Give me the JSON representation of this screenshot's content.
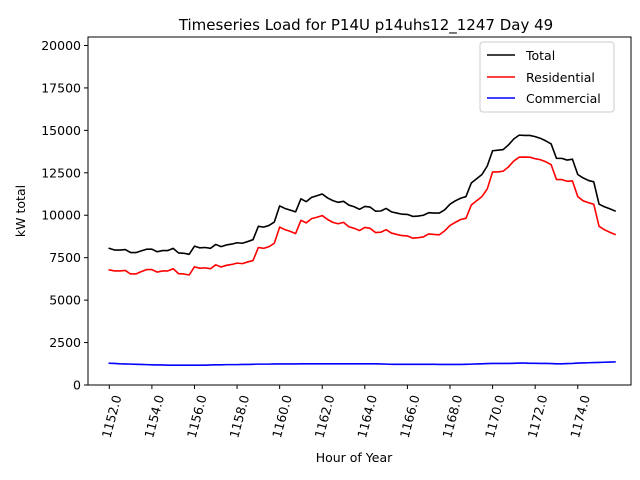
{
  "chart_data": {
    "type": "line",
    "title": "Timeseries Load for P14U p14uhs12_1247  Day 49",
    "xlabel": "Hour of Year",
    "ylabel": "kW total",
    "xlim": [
      1151.0,
      1176.5
    ],
    "ylim": [
      0,
      20500
    ],
    "xticks": [
      1152,
      1154,
      1156,
      1158,
      1160,
      1162,
      1164,
      1166,
      1168,
      1170,
      1172,
      1174
    ],
    "xtick_labels": [
      "1152.0",
      "1154.0",
      "1156.0",
      "1158.0",
      "1160.0",
      "1162.0",
      "1164.0",
      "1166.0",
      "1168.0",
      "1170.0",
      "1172.0",
      "1174.0"
    ],
    "yticks": [
      0,
      2500,
      5000,
      7500,
      10000,
      12500,
      15000,
      17500,
      20000
    ],
    "ytick_labels": [
      "0",
      "2500",
      "5000",
      "7500",
      "10000",
      "12500",
      "15000",
      "17500",
      "20000"
    ],
    "legend_position": "top-right",
    "x_start": 1152.0,
    "x_step": 0.25,
    "series": [
      {
        "name": "Total",
        "color": "#000000",
        "values": [
          8050,
          7950,
          7950,
          7980,
          7800,
          7800,
          7900,
          8000,
          8000,
          7850,
          7920,
          7920,
          8050,
          7780,
          7760,
          7700,
          8180,
          8080,
          8100,
          8050,
          8280,
          8150,
          8250,
          8300,
          8380,
          8350,
          8450,
          8560,
          9350,
          9300,
          9400,
          9600,
          10550,
          10400,
          10300,
          10200,
          10970,
          10800,
          11050,
          11150,
          11250,
          11020,
          10860,
          10760,
          10820,
          10600,
          10500,
          10350,
          10520,
          10480,
          10240,
          10250,
          10400,
          10200,
          10130,
          10060,
          10050,
          9930,
          9950,
          10000,
          10150,
          10130,
          10130,
          10320,
          10650,
          10850,
          11000,
          11100,
          11900,
          12150,
          12400,
          12900,
          13800,
          13830,
          13870,
          14150,
          14500,
          14720,
          14700,
          14700,
          14630,
          14530,
          14380,
          14200,
          13350,
          13350,
          13250,
          13300,
          12400,
          12200,
          12050,
          11970,
          10650,
          10500,
          10380,
          10250
        ]
      },
      {
        "name": "Residential",
        "color": "#ff0000",
        "values": [
          6780,
          6720,
          6720,
          6750,
          6540,
          6540,
          6680,
          6800,
          6800,
          6650,
          6720,
          6720,
          6850,
          6560,
          6540,
          6480,
          6960,
          6880,
          6900,
          6850,
          7080,
          6950,
          7050,
          7100,
          7180,
          7150,
          7250,
          7330,
          8100,
          8050,
          8150,
          8350,
          9300,
          9150,
          9050,
          8920,
          9700,
          9550,
          9800,
          9880,
          9980,
          9750,
          9580,
          9500,
          9580,
          9320,
          9230,
          9100,
          9280,
          9230,
          8980,
          9000,
          9150,
          8950,
          8870,
          8800,
          8780,
          8650,
          8680,
          8720,
          8900,
          8870,
          8850,
          9080,
          9400,
          9580,
          9750,
          9820,
          10600,
          10850,
          11100,
          11550,
          12550,
          12550,
          12600,
          12850,
          13200,
          13420,
          13430,
          13420,
          13330,
          13270,
          13150,
          12980,
          12100,
          12100,
          12000,
          12020,
          11100,
          10850,
          10740,
          10650,
          9350,
          9150,
          9000,
          8870
        ]
      },
      {
        "name": "Commercial",
        "color": "#0000ff",
        "values": [
          1280,
          1270,
          1250,
          1240,
          1230,
          1220,
          1210,
          1200,
          1190,
          1180,
          1180,
          1170,
          1170,
          1170,
          1170,
          1170,
          1170,
          1170,
          1170,
          1180,
          1190,
          1190,
          1200,
          1200,
          1200,
          1210,
          1210,
          1220,
          1230,
          1230,
          1230,
          1240,
          1240,
          1240,
          1240,
          1240,
          1250,
          1250,
          1250,
          1250,
          1250,
          1250,
          1250,
          1250,
          1250,
          1250,
          1250,
          1250,
          1250,
          1250,
          1250,
          1240,
          1230,
          1220,
          1220,
          1220,
          1220,
          1220,
          1220,
          1220,
          1220,
          1220,
          1210,
          1210,
          1210,
          1210,
          1210,
          1220,
          1230,
          1240,
          1250,
          1260,
          1270,
          1270,
          1270,
          1270,
          1280,
          1290,
          1290,
          1280,
          1280,
          1270,
          1270,
          1260,
          1250,
          1250,
          1260,
          1270,
          1290,
          1300,
          1310,
          1320,
          1330,
          1340,
          1350,
          1360
        ]
      }
    ]
  }
}
